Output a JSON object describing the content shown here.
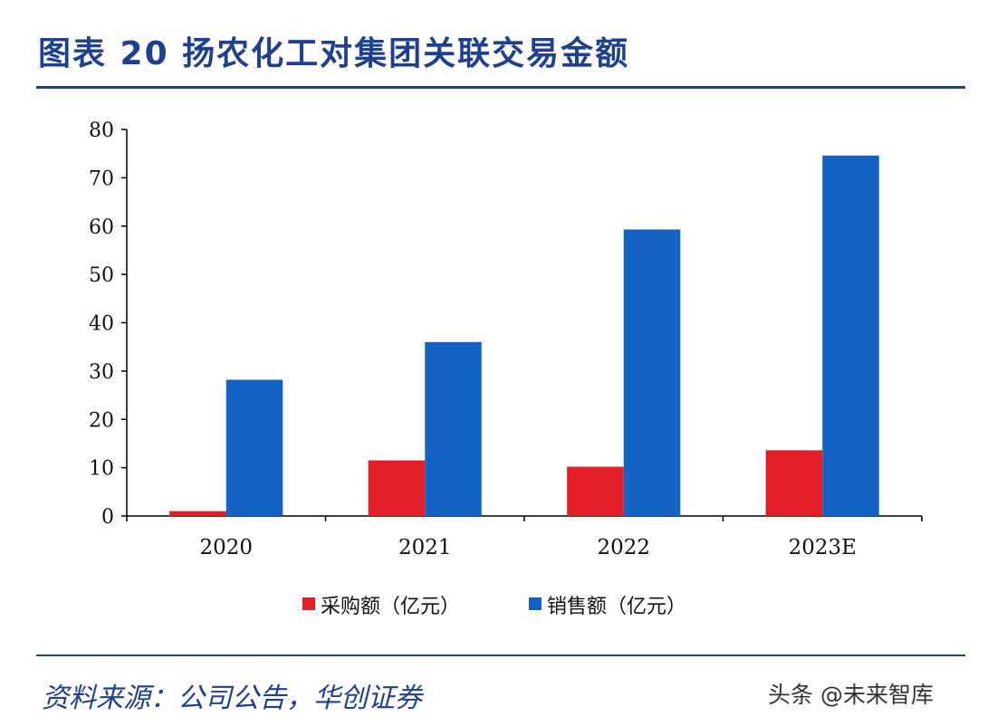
{
  "header": {
    "title": "图表 20  扬农化工对集团关联交易金额"
  },
  "chart_data": {
    "type": "bar",
    "categories": [
      "2020",
      "2021",
      "2022",
      "2023E"
    ],
    "series": [
      {
        "name": "采购额（亿元）",
        "color": "#e41e26",
        "values": [
          1,
          11.5,
          10.2,
          13.6
        ]
      },
      {
        "name": "销售额（亿元）",
        "color": "#1462c3",
        "values": [
          28.2,
          36,
          59.3,
          74.6
        ]
      }
    ],
    "ylim": [
      0,
      80
    ],
    "yticks": [
      0,
      10,
      20,
      30,
      40,
      50,
      60,
      70,
      80
    ],
    "grid": false,
    "legend": "bottom-center"
  },
  "footer": {
    "source": "资料来源：公司公告，华创证券",
    "watermark": "头条 @未来智库"
  }
}
